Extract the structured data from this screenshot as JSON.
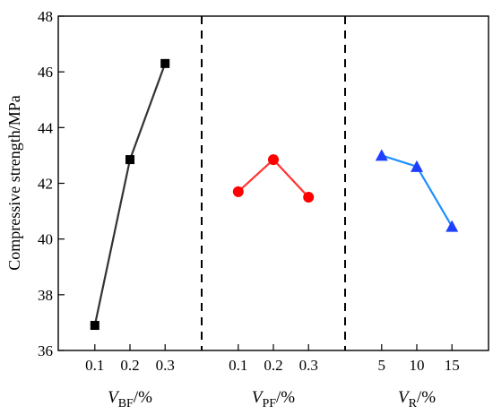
{
  "chart_data": {
    "type": "line",
    "ylabel": "Compressive strength/MPa",
    "ylim": [
      36,
      48
    ],
    "yticks": [
      36,
      38,
      40,
      42,
      44,
      46,
      48
    ],
    "grid": false,
    "panels": [
      {
        "xlabel_main": "V",
        "xlabel_sub": "BF",
        "xlabel_tail": "/%",
        "categories": [
          "0.1",
          "0.2",
          "0.3"
        ],
        "values": [
          36.9,
          42.85,
          46.3
        ],
        "marker": "square",
        "color": "#000000",
        "line_color": "#333333"
      },
      {
        "xlabel_main": "V",
        "xlabel_sub": "PF",
        "xlabel_tail": "/%",
        "categories": [
          "0.1",
          "0.2",
          "0.3"
        ],
        "values": [
          41.7,
          42.85,
          41.5
        ],
        "marker": "circle",
        "color": "#ff0000",
        "line_color": "#ff3333"
      },
      {
        "xlabel_main": "V",
        "xlabel_sub": "R",
        "xlabel_tail": "/%",
        "categories": [
          "5",
          "10",
          "15"
        ],
        "values": [
          43.0,
          42.6,
          40.45
        ],
        "marker": "triangle",
        "color": "#1f3fff",
        "line_color": "#1e8fff"
      }
    ]
  }
}
